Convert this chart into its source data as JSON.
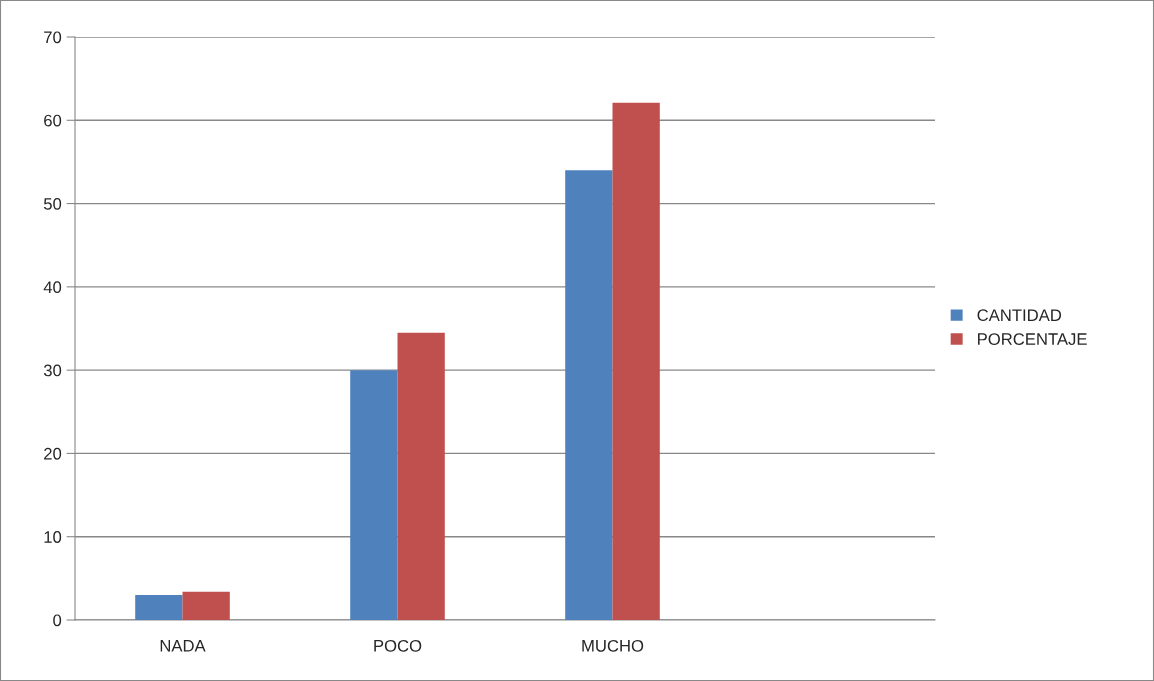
{
  "chart_data": {
    "type": "bar",
    "categories": [
      "NADA",
      "POCO",
      "MUCHO",
      null
    ],
    "series": [
      {
        "name": "CANTIDAD",
        "color": "#4f81bd",
        "values": [
          3,
          30,
          54,
          null
        ]
      },
      {
        "name": "PORCENTAJE",
        "color": "#c0504d",
        "values": [
          3.4,
          34.5,
          62.1,
          null
        ]
      }
    ],
    "ylim": [
      0,
      70
    ],
    "yticks": [
      0,
      10,
      20,
      30,
      40,
      50,
      60,
      70
    ],
    "grid": "y",
    "legend": "right"
  }
}
